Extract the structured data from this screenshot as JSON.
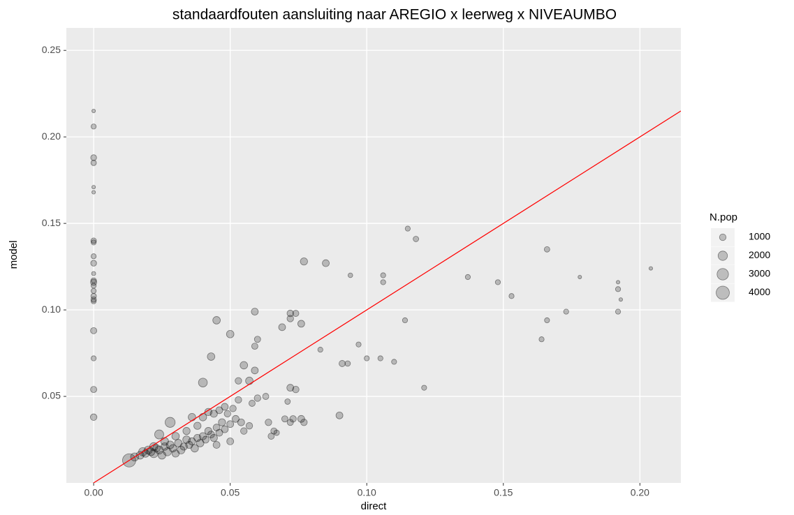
{
  "chart_data": {
    "type": "scatter",
    "title": "standaardfouten aansluiting naar AREGIO x leerweg x NIVEAUMBO",
    "x_label": "direct",
    "y_label": "model",
    "x": [
      0,
      0,
      0,
      0,
      0,
      0,
      0,
      0,
      0,
      0,
      0,
      0,
      0,
      0,
      0,
      0,
      0,
      0,
      0,
      0,
      0,
      0,
      0.115,
      0.118,
      0.077,
      0.085,
      0.094,
      0.106,
      0.106,
      0.137,
      0.148,
      0.153,
      0.166,
      0.166,
      0.164,
      0.173,
      0.178,
      0.192,
      0.192,
      0.193,
      0.192,
      0.204,
      0.114,
      0.097,
      0.083,
      0.1,
      0.105,
      0.11,
      0.121,
      0.091,
      0.093,
      0.09,
      0.045,
      0.05,
      0.059,
      0.06,
      0.059,
      0.069,
      0.072,
      0.074,
      0.072,
      0.076,
      0.043,
      0.055,
      0.04,
      0.059,
      0.053,
      0.057,
      0.072,
      0.074,
      0.063,
      0.06,
      0.058,
      0.071,
      0.076,
      0.077,
      0.07,
      0.073,
      0.072,
      0.064,
      0.066,
      0.065,
      0.067,
      0.028,
      0.024,
      0.013,
      0.015,
      0.017,
      0.018,
      0.019,
      0.02,
      0.021,
      0.022,
      0.023,
      0.024,
      0.025,
      0.026,
      0.027,
      0.028,
      0.029,
      0.03,
      0.031,
      0.032,
      0.033,
      0.034,
      0.035,
      0.036,
      0.037,
      0.038,
      0.039,
      0.04,
      0.041,
      0.042,
      0.043,
      0.044,
      0.045,
      0.046,
      0.047,
      0.048,
      0.049,
      0.05,
      0.051,
      0.052,
      0.053,
      0.054,
      0.036,
      0.04,
      0.042,
      0.044,
      0.046,
      0.048,
      0.038,
      0.034,
      0.03,
      0.026,
      0.022,
      0.045,
      0.05,
      0.055,
      0.057
    ],
    "values": [
      0.215,
      0.206,
      0.188,
      0.185,
      0.171,
      0.168,
      0.14,
      0.139,
      0.131,
      0.127,
      0.121,
      0.117,
      0.116,
      0.114,
      0.111,
      0.108,
      0.106,
      0.105,
      0.088,
      0.072,
      0.054,
      0.038,
      0.147,
      0.141,
      0.128,
      0.127,
      0.12,
      0.12,
      0.116,
      0.119,
      0.116,
      0.108,
      0.135,
      0.094,
      0.083,
      0.099,
      0.119,
      0.116,
      0.112,
      0.106,
      0.099,
      0.124,
      0.094,
      0.08,
      0.077,
      0.072,
      0.072,
      0.07,
      0.055,
      0.069,
      0.069,
      0.039,
      0.094,
      0.086,
      0.099,
      0.083,
      0.079,
      0.09,
      0.098,
      0.098,
      0.095,
      0.092,
      0.073,
      0.068,
      0.058,
      0.065,
      0.059,
      0.059,
      0.055,
      0.054,
      0.05,
      0.049,
      0.046,
      0.047,
      0.037,
      0.035,
      0.037,
      0.037,
      0.035,
      0.035,
      0.03,
      0.027,
      0.029,
      0.035,
      0.028,
      0.013,
      0.015,
      0.016,
      0.018,
      0.017,
      0.019,
      0.018,
      0.017,
      0.02,
      0.019,
      0.016,
      0.021,
      0.018,
      0.022,
      0.02,
      0.017,
      0.023,
      0.019,
      0.021,
      0.025,
      0.022,
      0.024,
      0.02,
      0.026,
      0.023,
      0.027,
      0.025,
      0.03,
      0.028,
      0.026,
      0.032,
      0.029,
      0.035,
      0.031,
      0.04,
      0.034,
      0.043,
      0.037,
      0.048,
      0.035,
      0.038,
      0.038,
      0.041,
      0.04,
      0.042,
      0.044,
      0.033,
      0.03,
      0.027,
      0.024,
      0.021,
      0.022,
      0.024,
      0.03,
      0.033
    ],
    "sizes": [
      300,
      600,
      800,
      700,
      300,
      300,
      700,
      600,
      600,
      800,
      400,
      700,
      900,
      600,
      600,
      700,
      700,
      600,
      900,
      600,
      900,
      1000,
      600,
      700,
      1200,
      1100,
      500,
      600,
      600,
      600,
      600,
      600,
      700,
      600,
      600,
      600,
      300,
      300,
      600,
      300,
      600,
      300,
      600,
      600,
      600,
      600,
      600,
      600,
      600,
      900,
      700,
      1100,
      1300,
      1300,
      1100,
      900,
      900,
      1100,
      1000,
      900,
      1000,
      1100,
      1300,
      1300,
      1800,
      1100,
      1000,
      1300,
      1100,
      1000,
      900,
      1000,
      900,
      700,
      1100,
      1000,
      900,
      1000,
      900,
      1000,
      900,
      900,
      700,
      2300,
      1900,
      4000,
      1500,
      1400,
      1600,
      1300,
      1500,
      1400,
      1600,
      1300,
      1500,
      1400,
      1300,
      1500,
      1400,
      1300,
      1200,
      1300,
      1400,
      1200,
      1300,
      1200,
      1200,
      1300,
      1200,
      1300,
      1200,
      1100,
      1200,
      1100,
      1200,
      1100,
      1100,
      1200,
      1100,
      1000,
      1100,
      1000,
      1100,
      1000,
      1100,
      1300,
      1300,
      1200,
      1200,
      1100,
      1100,
      1200,
      1200,
      1300,
      1400,
      1500,
      1100,
      1100,
      1000,
      1000
    ],
    "color": "#000000",
    "alpha": 0.22,
    "xlim": [
      -0.01,
      0.215
    ],
    "ylim": [
      0,
      0.263
    ],
    "xticks": [
      {
        "value": 0,
        "label": "0.00"
      },
      0.05,
      {
        "value": 0.1,
        "label": "0.10"
      },
      0.15,
      {
        "value": 0.2,
        "label": "0.20"
      }
    ],
    "yticks": [
      0.05,
      {
        "value": 0.1,
        "label": "0.10"
      },
      0.15,
      {
        "value": 0.2,
        "label": "0.20"
      },
      0.25
    ],
    "grid": true,
    "reference_line": {
      "slope": 1,
      "intercept": 0,
      "color": "#ff0000"
    },
    "size_legend": {
      "title": "N.pop",
      "values": [
        1000,
        2000,
        3000,
        4000
      ]
    }
  }
}
